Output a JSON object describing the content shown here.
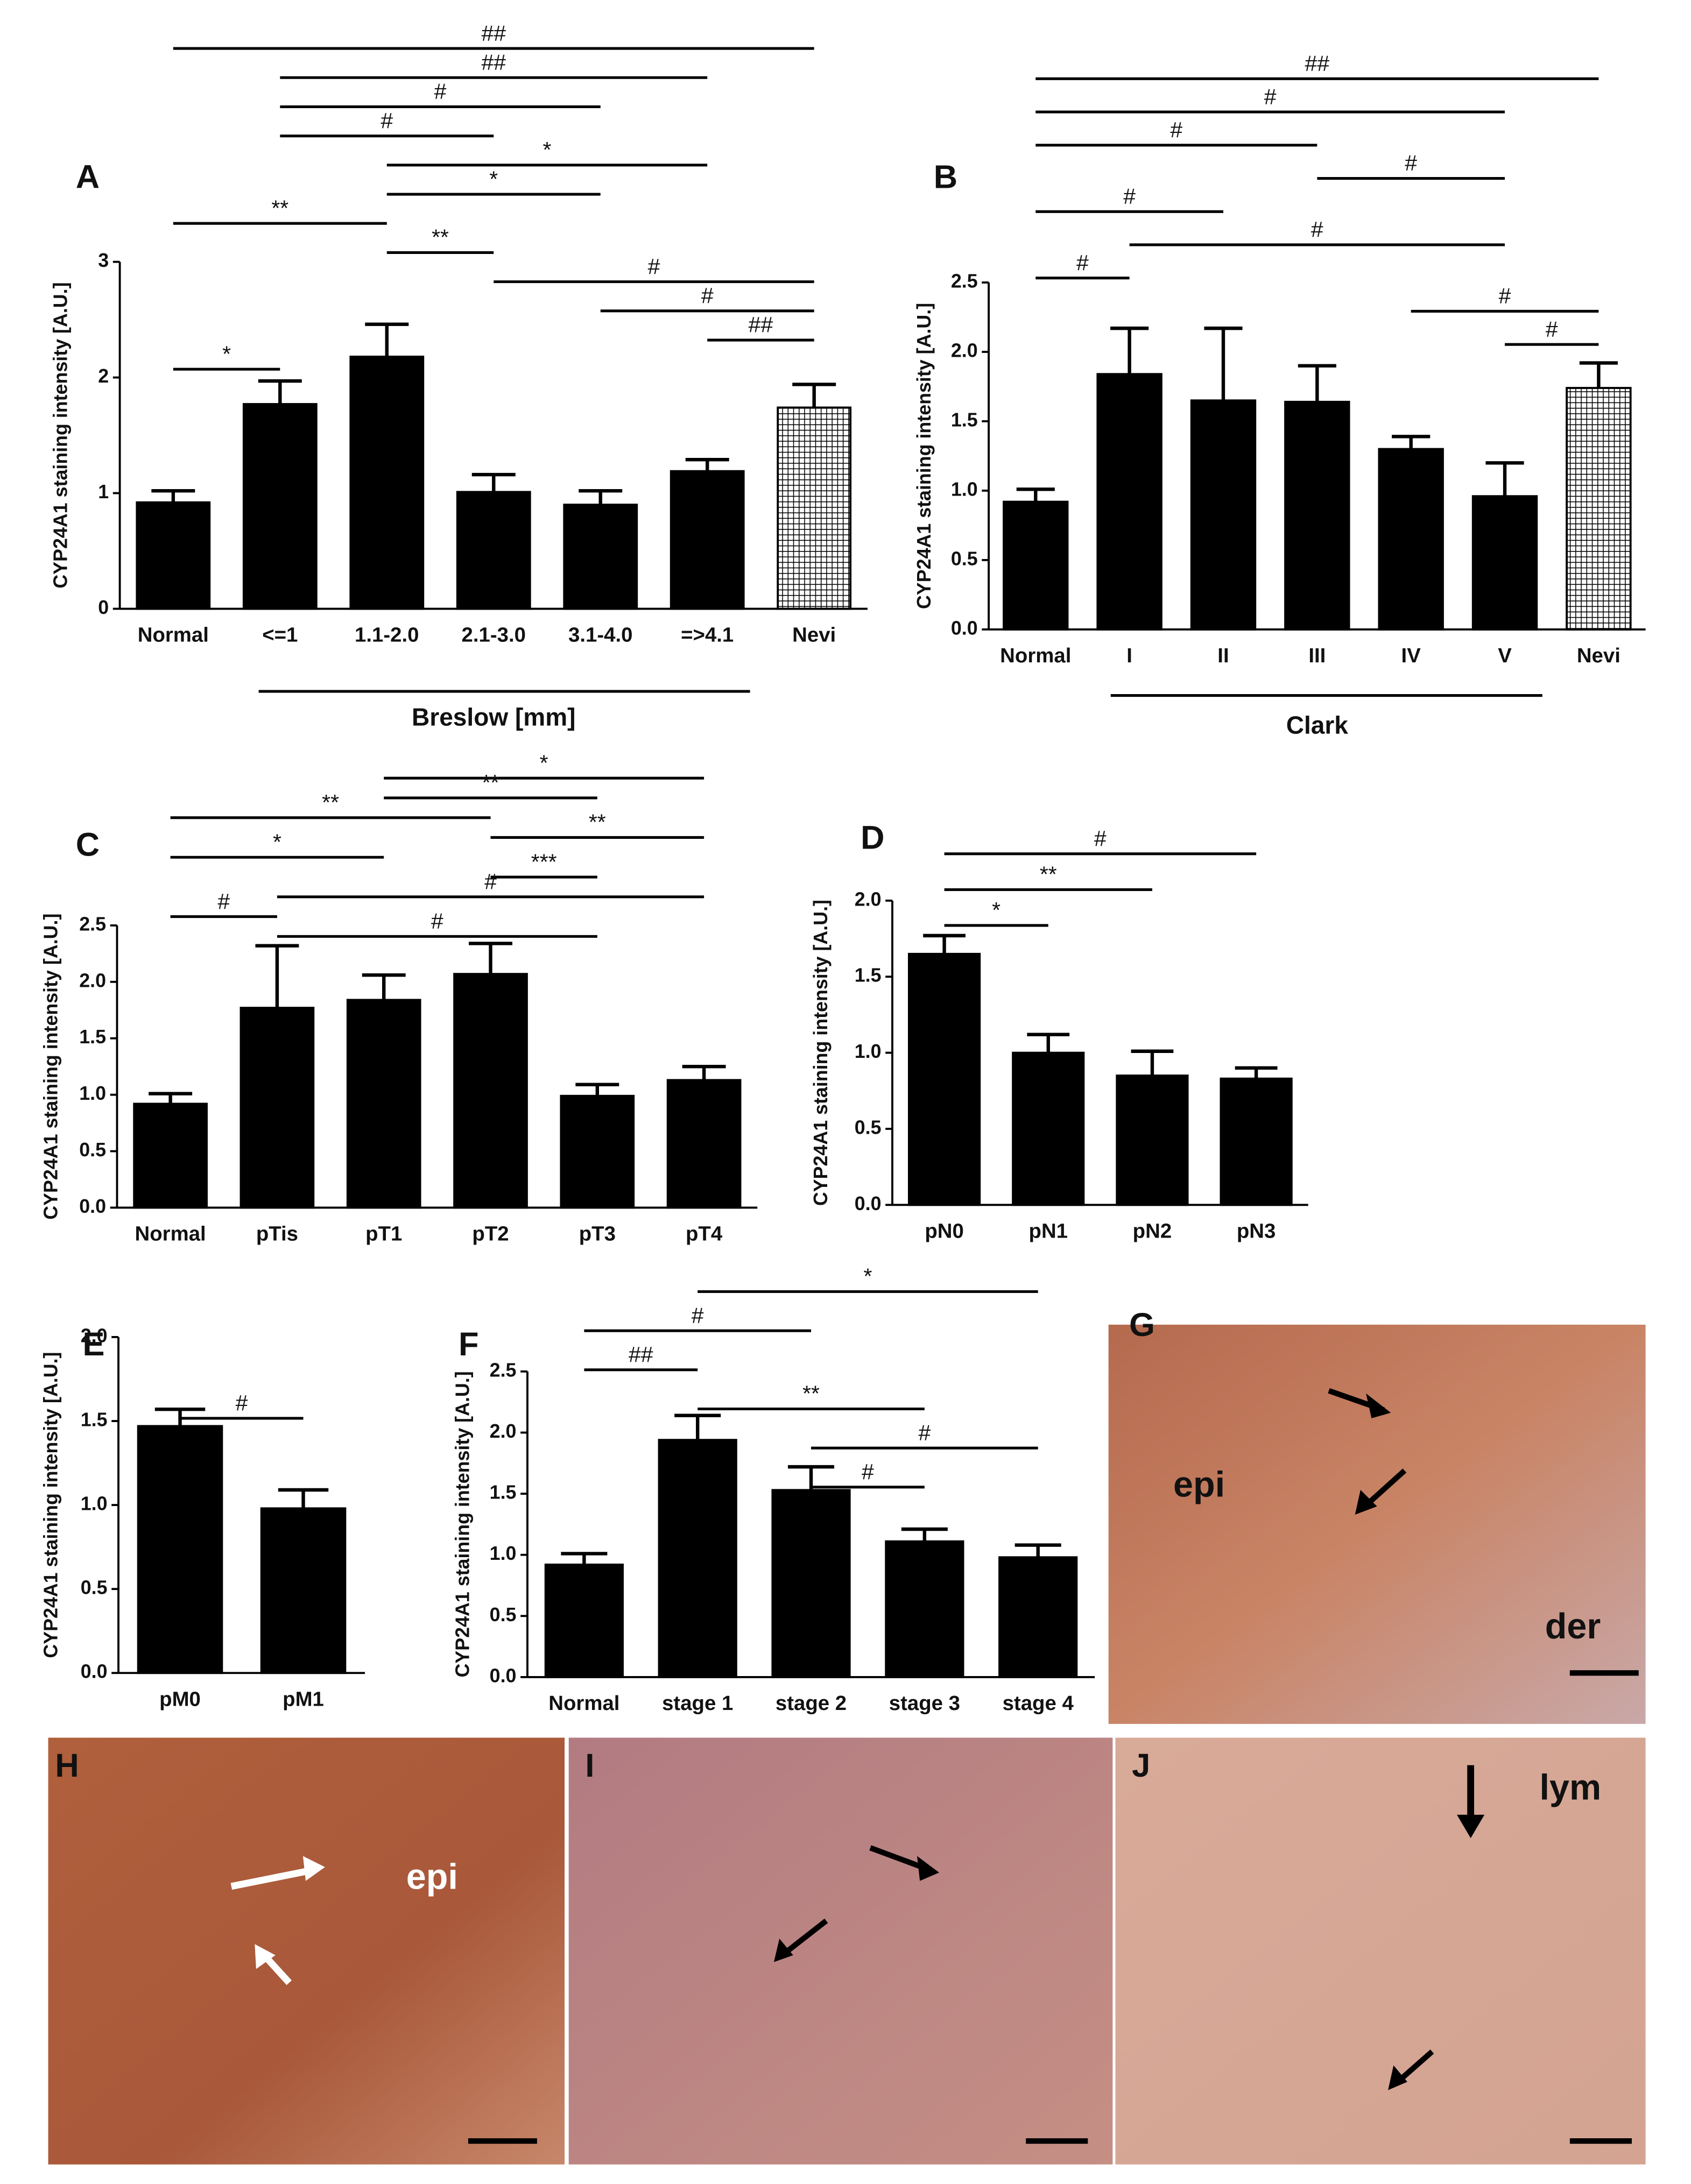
{
  "chart_data": [
    {
      "type": "bar",
      "label": "A",
      "ylabel": "CYP24A1 staining intensity [A.U.]",
      "xlabel": "Breslow [mm]",
      "categories": [
        "Normal",
        "<=1",
        "1.1-2.0",
        "2.1-3.0",
        "3.1-4.0",
        "=>4.1",
        "Nevi"
      ],
      "values": [
        0.92,
        1.77,
        2.18,
        1.01,
        0.9,
        1.19,
        1.74
      ],
      "errors": [
        0.1,
        0.2,
        0.28,
        0.15,
        0.12,
        0.1,
        0.2
      ],
      "hatch": [
        false,
        false,
        false,
        false,
        false,
        false,
        true
      ],
      "color": "#000000",
      "ylim": [
        0,
        3
      ],
      "yticks": [
        0,
        1,
        2,
        3
      ],
      "annotations": [
        {
          "text": "##",
          "between": [
            "Normal",
            "Nevi"
          ]
        },
        {
          "text": "##",
          "between": [
            "<=1",
            "=>4.1"
          ]
        },
        {
          "text": "#",
          "between": [
            "<=1",
            "3.1-4.0"
          ]
        },
        {
          "text": "#",
          "between": [
            "<=1",
            "2.1-3.0"
          ]
        },
        {
          "text": "*",
          "between": [
            "1.1-2.0",
            "=>4.1"
          ]
        },
        {
          "text": "*",
          "between": [
            "1.1-2.0",
            "3.1-4.0"
          ]
        },
        {
          "text": "**",
          "between": [
            "Normal",
            "1.1-2.0"
          ]
        },
        {
          "text": "**",
          "between": [
            "1.1-2.0",
            "2.1-3.0"
          ]
        },
        {
          "text": "#",
          "between": [
            "2.1-3.0",
            "Nevi"
          ]
        },
        {
          "text": "#",
          "between": [
            "3.1-4.0",
            "Nevi"
          ]
        },
        {
          "text": "##",
          "between": [
            "=>4.1",
            "Nevi"
          ]
        },
        {
          "text": "*",
          "between": [
            "Normal",
            "<=1"
          ]
        }
      ]
    },
    {
      "type": "bar",
      "label": "B",
      "ylabel": "CYP24A1 staining intensity [A.U.]",
      "xlabel": "Clark",
      "categories": [
        "Normal",
        "I",
        "II",
        "III",
        "IV",
        "V",
        "Nevi"
      ],
      "values": [
        0.92,
        1.84,
        1.65,
        1.64,
        1.3,
        0.96,
        1.74
      ],
      "errors": [
        0.09,
        0.33,
        0.52,
        0.26,
        0.09,
        0.24,
        0.18
      ],
      "hatch": [
        false,
        false,
        false,
        false,
        false,
        false,
        true
      ],
      "color": "#000000",
      "ylim": [
        0,
        2.5
      ],
      "yticks": [
        {
          "value": 0,
          "label": "0.0"
        },
        {
          "value": 0.5,
          "label": "0.5"
        },
        {
          "value": 1,
          "label": "1.0"
        },
        {
          "value": 1.5,
          "label": "1.5"
        },
        {
          "value": 2,
          "label": "2.0"
        },
        {
          "value": 2.5,
          "label": "2.5"
        }
      ],
      "annotations": [
        {
          "text": "##",
          "between": [
            "Normal",
            "Nevi"
          ]
        },
        {
          "text": "#",
          "between": [
            "Normal",
            "V"
          ]
        },
        {
          "text": "#",
          "between": [
            "Normal",
            "III"
          ]
        },
        {
          "text": "#",
          "between": [
            "III",
            "V"
          ]
        },
        {
          "text": "#",
          "between": [
            "Normal",
            "II"
          ]
        },
        {
          "text": "#",
          "between": [
            "I",
            "V"
          ]
        },
        {
          "text": "#",
          "between": [
            "Normal",
            "I"
          ]
        },
        {
          "text": "#",
          "between": [
            "IV",
            "Nevi"
          ]
        },
        {
          "text": "#",
          "between": [
            "V",
            "Nevi"
          ]
        }
      ]
    },
    {
      "type": "bar",
      "label": "C",
      "ylabel": "CYP24A1 staining intensity [A.U.]",
      "categories": [
        "Normal",
        "pTis",
        "pT1",
        "pT2",
        "pT3",
        "pT4"
      ],
      "values": [
        0.92,
        1.77,
        1.84,
        2.07,
        0.99,
        1.13
      ],
      "errors": [
        0.09,
        0.55,
        0.22,
        0.27,
        0.1,
        0.12
      ],
      "hatch": [
        false,
        false,
        false,
        false,
        false,
        false
      ],
      "color": "#000000",
      "ylim": [
        0,
        2.5
      ],
      "yticks": [
        {
          "value": 0,
          "label": "0.0"
        },
        {
          "value": 0.5,
          "label": "0.5"
        },
        {
          "value": 1,
          "label": "1.0"
        },
        {
          "value": 1.5,
          "label": "1.5"
        },
        {
          "value": 2,
          "label": "2.0"
        },
        {
          "value": 2.5,
          "label": "2.5"
        }
      ],
      "annotations": [
        {
          "text": "*",
          "between": [
            "pT1",
            "pT4"
          ]
        },
        {
          "text": "**",
          "between": [
            "pT1",
            "pT3"
          ]
        },
        {
          "text": "**",
          "between": [
            "Normal",
            "pT2"
          ]
        },
        {
          "text": "**",
          "between": [
            "pT2",
            "pT4"
          ]
        },
        {
          "text": "*",
          "between": [
            "Normal",
            "pT1"
          ]
        },
        {
          "text": "***",
          "between": [
            "pT2",
            "pT3"
          ]
        },
        {
          "text": "#",
          "between": [
            "pTis",
            "pT4"
          ]
        },
        {
          "text": "#",
          "between": [
            "Normal",
            "pTis"
          ]
        },
        {
          "text": "#",
          "between": [
            "pTis",
            "pT3"
          ]
        }
      ]
    },
    {
      "type": "bar",
      "label": "D",
      "ylabel": "CYP24A1 staining intensity [A.U.]",
      "categories": [
        "pN0",
        "pN1",
        "pN2",
        "pN3"
      ],
      "values": [
        1.65,
        1.0,
        0.85,
        0.83
      ],
      "errors": [
        0.12,
        0.12,
        0.16,
        0.07
      ],
      "hatch": [
        false,
        false,
        false,
        false
      ],
      "color": "#000000",
      "ylim": [
        0,
        2
      ],
      "yticks": [
        {
          "value": 0,
          "label": "0.0"
        },
        {
          "value": 0.5,
          "label": "0.5"
        },
        {
          "value": 1,
          "label": "1.0"
        },
        {
          "value": 1.5,
          "label": "1.5"
        },
        {
          "value": 2,
          "label": "2.0"
        }
      ],
      "annotations": [
        {
          "text": "#",
          "between": [
            "pN0",
            "pN3"
          ]
        },
        {
          "text": "**",
          "between": [
            "pN0",
            "pN2"
          ]
        },
        {
          "text": "*",
          "between": [
            "pN0",
            "pN1"
          ]
        }
      ]
    },
    {
      "type": "bar",
      "label": "E",
      "ylabel": "CYP24A1 staining intensity [A.U.]",
      "categories": [
        "pM0",
        "pM1"
      ],
      "values": [
        1.47,
        0.98
      ],
      "errors": [
        0.1,
        0.11
      ],
      "hatch": [
        false,
        false
      ],
      "color": "#000000",
      "ylim": [
        0,
        2
      ],
      "yticks": [
        {
          "value": 0,
          "label": "0.0"
        },
        {
          "value": 0.5,
          "label": "0.5"
        },
        {
          "value": 1,
          "label": "1.0"
        },
        {
          "value": 1.5,
          "label": "1.5"
        },
        {
          "value": 2,
          "label": "2.0"
        }
      ],
      "annotations": [
        {
          "text": "#",
          "between": [
            "pM0",
            "pM1"
          ]
        }
      ]
    },
    {
      "type": "bar",
      "label": "F",
      "ylabel": "CYP24A1 staining intensity [A.U.]",
      "categories": [
        "Normal",
        "stage 1",
        "stage 2",
        "stage 3",
        "stage 4"
      ],
      "values": [
        0.92,
        1.94,
        1.53,
        1.11,
        0.98
      ],
      "errors": [
        0.09,
        0.2,
        0.19,
        0.1,
        0.1
      ],
      "hatch": [
        false,
        false,
        false,
        false,
        false
      ],
      "color": "#000000",
      "ylim": [
        0,
        2.5
      ],
      "yticks": [
        {
          "value": 0,
          "label": "0.0"
        },
        {
          "value": 0.5,
          "label": "0.5"
        },
        {
          "value": 1,
          "label": "1.0"
        },
        {
          "value": 1.5,
          "label": "1.5"
        },
        {
          "value": 2,
          "label": "2.0"
        },
        {
          "value": 2.5,
          "label": "2.5"
        }
      ],
      "annotations": [
        {
          "text": "*",
          "between": [
            "stage 1",
            "stage 4"
          ]
        },
        {
          "text": "#",
          "between": [
            "Normal",
            "stage 2"
          ]
        },
        {
          "text": "##",
          "between": [
            "Normal",
            "stage 1"
          ]
        },
        {
          "text": "**",
          "between": [
            "stage 1",
            "stage 3"
          ]
        },
        {
          "text": "#",
          "between": [
            "stage 2",
            "stage 4"
          ]
        },
        {
          "text": "#",
          "between": [
            "stage 2",
            "stage 3"
          ]
        }
      ]
    }
  ],
  "images": [
    {
      "label": "G",
      "annotations": [
        "epi",
        "der"
      ]
    },
    {
      "label": "H",
      "annotations": [
        "epi"
      ]
    },
    {
      "label": "I",
      "annotations": []
    },
    {
      "label": "J",
      "annotations": [
        "lym"
      ]
    }
  ]
}
